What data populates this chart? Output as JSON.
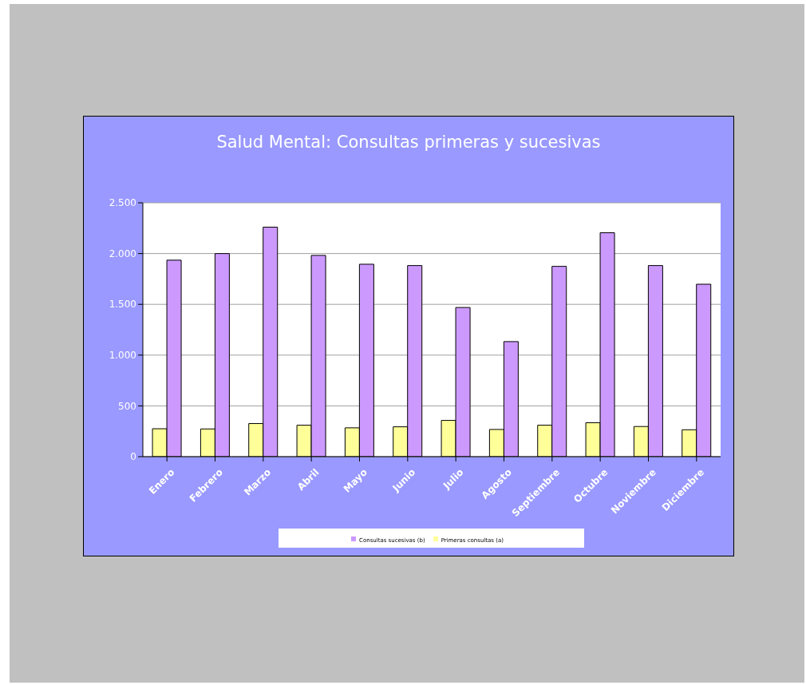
{
  "chart_data": {
    "type": "bar",
    "title": "Salud Mental: Consultas primeras y sucesivas",
    "categories": [
      "Enero",
      "Febrero",
      "Marzo",
      "Abril",
      "Mayo",
      "Junio",
      "Julio",
      "Agosto",
      "Septiembre",
      "Octubre",
      "Noviembre",
      "Diciembre"
    ],
    "series": [
      {
        "name": "Primeras consultas  (a)",
        "color": "#ffff99",
        "values": [
          275,
          273,
          326,
          310,
          284,
          294,
          357,
          268,
          310,
          334,
          297,
          265
        ]
      },
      {
        "name": "Consultas sucesivas  (b)",
        "color": "#cc99ff",
        "values": [
          1935,
          2000,
          2260,
          1982,
          1895,
          1882,
          1469,
          1133,
          1874,
          2205,
          1882,
          1698
        ]
      }
    ],
    "ylim": [
      0,
      2500
    ],
    "yticks": [
      0,
      500,
      {
        "value": 1000,
        "label": "1.000"
      },
      {
        "value": 1500,
        "label": "1.500"
      },
      {
        "value": 2000,
        "label": "2.000"
      },
      {
        "value": 2500,
        "label": "2.500"
      }
    ],
    "grid": "y",
    "legend": "bottom"
  }
}
